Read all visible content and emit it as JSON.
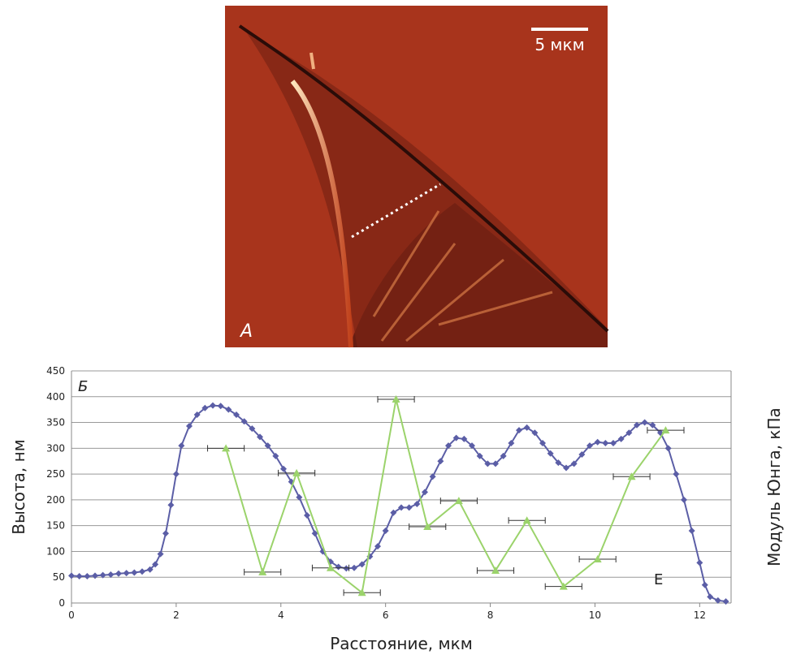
{
  "image": {
    "scale_label": "5 мкм",
    "panel_label": "А"
  },
  "chart_data": {
    "type": "line",
    "panel_label": "Б",
    "annotation": "Е",
    "xlabel": "Расстояние, мкм",
    "ylabel": "Высота, нм",
    "y2label": "Модуль Юнга, кПа",
    "xlim": [
      0,
      12.6
    ],
    "xticks": [
      0,
      2,
      4,
      6,
      8,
      10,
      12
    ],
    "ylim": [
      0,
      450
    ],
    "yticks": [
      0,
      50,
      100,
      150,
      200,
      250,
      300,
      350,
      400,
      450
    ],
    "grid": true,
    "series": [
      {
        "color": "#5b5ea6",
        "x": [
          0,
          0.15,
          0.3,
          0.45,
          0.6,
          0.75,
          0.9,
          1.05,
          1.2,
          1.35,
          1.5,
          1.6,
          1.7,
          1.8,
          1.9,
          2.0,
          2.1,
          2.25,
          2.4,
          2.55,
          2.7,
          2.85,
          3.0,
          3.15,
          3.3,
          3.45,
          3.6,
          3.75,
          3.9,
          4.05,
          4.2,
          4.35,
          4.5,
          4.65,
          4.8,
          4.95,
          5.1,
          5.25,
          5.4,
          5.55,
          5.7,
          5.85,
          6.0,
          6.15,
          6.3,
          6.45,
          6.6,
          6.75,
          6.9,
          7.05,
          7.2,
          7.35,
          7.5,
          7.65,
          7.8,
          7.95,
          8.1,
          8.25,
          8.4,
          8.55,
          8.7,
          8.85,
          9.0,
          9.15,
          9.3,
          9.45,
          9.6,
          9.75,
          9.9,
          10.05,
          10.2,
          10.35,
          10.5,
          10.65,
          10.8,
          10.95,
          11.1,
          11.25,
          11.4,
          11.55,
          11.7,
          11.85,
          12.0,
          12.1,
          12.2,
          12.35,
          12.5
        ],
        "values": [
          53,
          52,
          52,
          53,
          54,
          55,
          57,
          58,
          59,
          61,
          65,
          75,
          95,
          135,
          190,
          250,
          305,
          343,
          365,
          378,
          383,
          382,
          375,
          365,
          352,
          338,
          322,
          305,
          285,
          260,
          235,
          205,
          170,
          135,
          100,
          80,
          70,
          67,
          68,
          75,
          90,
          110,
          140,
          175,
          185,
          185,
          192,
          215,
          245,
          275,
          305,
          320,
          318,
          305,
          285,
          270,
          270,
          285,
          310,
          335,
          340,
          330,
          310,
          290,
          272,
          262,
          270,
          288,
          305,
          312,
          310,
          310,
          318,
          330,
          345,
          350,
          345,
          330,
          300,
          250,
          200,
          140,
          78,
          35,
          12,
          5,
          3
        ]
      },
      {
        "color": "#9bd36b",
        "x": [
          2.95,
          3.65,
          4.3,
          4.95,
          5.55,
          6.2,
          6.8,
          7.4,
          8.1,
          8.7,
          9.4,
          10.05,
          10.7,
          11.35
        ],
        "values": [
          300,
          60,
          252,
          68,
          20,
          395,
          148,
          198,
          63,
          160,
          32,
          85,
          245,
          335
        ],
        "xerr": [
          0.35,
          0.35,
          0.35,
          0.35,
          0.35,
          0.35,
          0.35,
          0.35,
          0.35,
          0.35,
          0.35,
          0.35,
          0.35,
          0.35
        ]
      }
    ]
  }
}
